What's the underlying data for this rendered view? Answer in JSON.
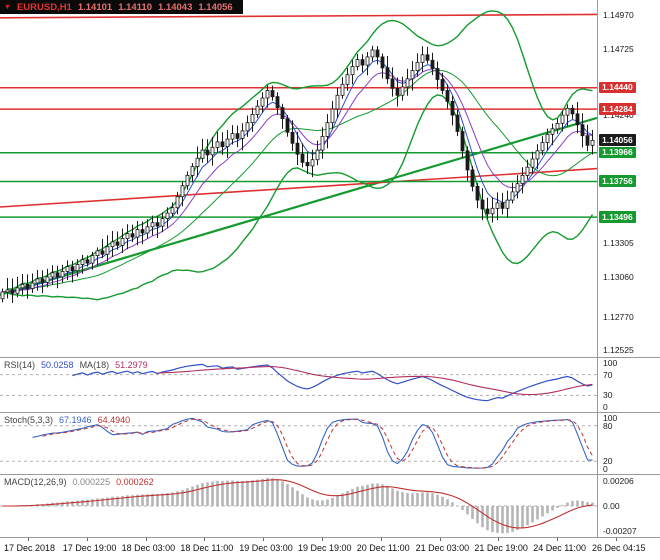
{
  "title": {
    "symbol": "EURUSD,H1",
    "open": "1.14101",
    "high": "1.14110",
    "low": "1.14043",
    "close": "1.14056"
  },
  "chart_data": {
    "type": "candlestick",
    "symbol": "EURUSD",
    "timeframe": "H1",
    "x_labels": [
      "17 Dec 2018",
      "17 Dec 19:00",
      "18 Dec 03:00",
      "18 Dec 11:00",
      "19 Dec 03:00",
      "19 Dec 19:00",
      "20 Dec 11:00",
      "21 Dec 03:00",
      "21 Dec 19:00",
      "24 Dec 11:00",
      "26 Dec 04:15"
    ],
    "main": {
      "ylim": [
        1.1249,
        1.1508
      ],
      "bollinger_period": 20,
      "ema_fast": 5,
      "ema_mid": 10,
      "colors": {
        "bands": "#149a2e",
        "ema_fast": "#2b50c8",
        "ema_mid": "#8a3fc0",
        "candle_up": "#ffffff",
        "candle_down": "#1a1a1a",
        "candle_stroke": "#1a1a1a"
      },
      "closes": [
        1.1295,
        1.12965,
        1.1294,
        1.1298,
        1.13005,
        1.12975,
        1.13015,
        1.13045,
        1.1302,
        1.1306,
        1.1309,
        1.1306,
        1.131,
        1.13135,
        1.13105,
        1.1315,
        1.13185,
        1.1316,
        1.13215,
        1.1325,
        1.13225,
        1.1328,
        1.13315,
        1.1329,
        1.1334,
        1.13375,
        1.1335,
        1.13405,
        1.1338,
        1.13425,
        1.13455,
        1.1343,
        1.13485,
        1.13525,
        1.13565,
        1.13645,
        1.13725,
        1.138,
        1.13865,
        1.13925,
        1.13985,
        1.1395,
        1.14005,
        1.14045,
        1.1401,
        1.14065,
        1.14105,
        1.1407,
        1.14125,
        1.14185,
        1.14245,
        1.14305,
        1.14365,
        1.1442,
        1.14375,
        1.14295,
        1.14215,
        1.14115,
        1.14035,
        1.13955,
        1.13895,
        1.1387,
        1.13915,
        1.13985,
        1.14085,
        1.14185,
        1.14285,
        1.14385,
        1.14465,
        1.14535,
        1.14595,
        1.14645,
        1.14605,
        1.14665,
        1.14715,
        1.14665,
        1.14585,
        1.14505,
        1.14435,
        1.14385,
        1.14445,
        1.14505,
        1.14565,
        1.14625,
        1.1468,
        1.1464,
        1.1458,
        1.145,
        1.1442,
        1.1434,
        1.1424,
        1.1412,
        1.1398,
        1.1384,
        1.1372,
        1.1362,
        1.13555,
        1.1352,
        1.1356,
        1.136,
        1.1356,
        1.1362,
        1.1368,
        1.1374,
        1.138,
        1.1386,
        1.1392,
        1.1398,
        1.1404,
        1.141,
        1.1414,
        1.1418,
        1.1424,
        1.1429,
        1.1425,
        1.1417,
        1.1409,
        1.1402,
        1.14056
      ],
      "levels": [
        {
          "value": 1.1444,
          "color": "#e03131",
          "width": 1.5
        },
        {
          "value": 1.14284,
          "color": "#e03131",
          "width": 1.5
        },
        {
          "value": 1.13966,
          "color": "#149a2e",
          "width": 1.5
        },
        {
          "value": 1.13756,
          "color": "#149a2e",
          "width": 1.5
        },
        {
          "value": 1.13496,
          "color": "#149a2e",
          "width": 1.5
        }
      ],
      "trendlines": [
        {
          "x1": 0,
          "p1": 1.1495,
          "x2": 597,
          "p2": 1.14975,
          "color": "#e03131",
          "width": 1.6
        },
        {
          "x1": 0,
          "p1": 1.1293,
          "x2": 597,
          "p2": 1.1422,
          "color": "#149a2e",
          "width": 2.2
        },
        {
          "x1": 0,
          "p1": 1.1357,
          "x2": 597,
          "p2": 1.1385,
          "color": "#e03131",
          "width": 1.6
        }
      ],
      "axis_ticks": [
        {
          "label": "1.14970",
          "value": 1.1497
        },
        {
          "label": "1.14725",
          "value": 1.14725
        },
        {
          "label": "1.14240",
          "value": 1.1424
        },
        {
          "label": "1.13305",
          "value": 1.13305
        },
        {
          "label": "1.13060",
          "value": 1.1306
        },
        {
          "label": "1.12770",
          "value": 1.1277
        },
        {
          "label": "1.12525",
          "value": 1.12525
        }
      ],
      "badges": [
        {
          "label": "1.14440",
          "value": 1.1444,
          "bg": "#d82f2f",
          "name": "resistance-price-badge"
        },
        {
          "label": "1.14284",
          "value": 1.14284,
          "bg": "#d82f2f",
          "name": "resistance-price-badge"
        },
        {
          "label": "1.14056",
          "value": 1.14056,
          "bg": "#1b1b1b",
          "name": "current-price-badge"
        },
        {
          "label": "1.13966",
          "value": 1.13966,
          "bg": "#149a2e",
          "name": "support-price-badge"
        },
        {
          "label": "1.13756",
          "value": 1.13756,
          "bg": "#149a2e",
          "name": "support-price-badge"
        },
        {
          "label": "1.13496",
          "value": 1.13496,
          "bg": "#149a2e",
          "name": "support-price-badge"
        }
      ]
    },
    "rsi": {
      "label": "RSI(14)",
      "value": "50.0258",
      "ma_label": "MA(18)",
      "ma_value": "51.2979",
      "period": 14,
      "ma_period": 18,
      "levels": [
        70,
        30
      ],
      "ylim": [
        0,
        100
      ],
      "colors": {
        "line": "#3050c8",
        "ma": "#b03060"
      },
      "axis": [
        {
          "label": "100",
          "value": 100
        },
        {
          "label": "70",
          "value": 70
        },
        {
          "label": "30",
          "value": 30
        },
        {
          "label": "0",
          "value": 0
        }
      ]
    },
    "stoch": {
      "label": "Stoch(5,3,3)",
      "k_value": "67.1946",
      "d_value": "64.4940",
      "k_period": 5,
      "slowing": 3,
      "d_period": 3,
      "levels": [
        80,
        20
      ],
      "ylim": [
        0,
        100
      ],
      "colors": {
        "k": "#3565c5",
        "d": "#c03030"
      },
      "axis": [
        {
          "label": "100",
          "value": 100
        },
        {
          "label": "80",
          "value": 80
        },
        {
          "label": "20",
          "value": 20
        },
        {
          "label": "0",
          "value": 0
        }
      ]
    },
    "macd": {
      "label": "MACD(12,26,9)",
      "value": "0.000225",
      "signal_value": "0.000262",
      "fast": 12,
      "slow": 26,
      "signal_period": 9,
      "ylim": [
        -0.0026,
        0.0026
      ],
      "colors": {
        "hist": "#b5b5b5",
        "signal": "#c03030"
      },
      "axis": [
        {
          "label": "0.00206",
          "value": 0.00206
        },
        {
          "label": "0.00",
          "value": 0
        },
        {
          "label": "-0.00207",
          "value": -0.00207
        }
      ]
    }
  }
}
